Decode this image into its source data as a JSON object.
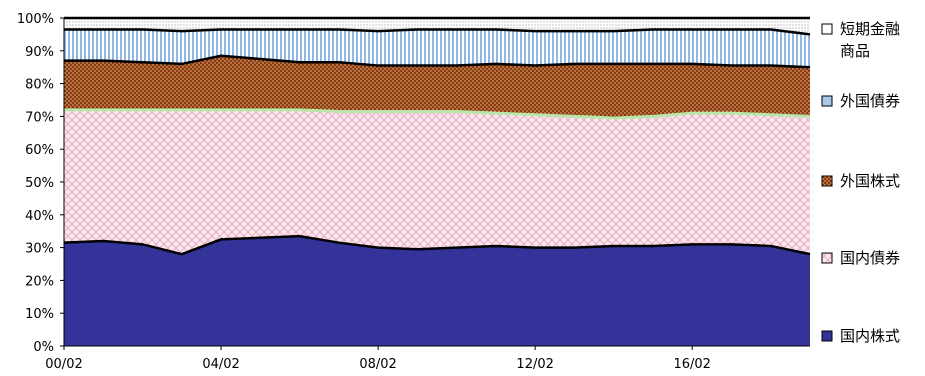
{
  "chart_data": {
    "type": "area",
    "stacked": true,
    "normalized_percent": true,
    "x_ticks": [
      "00/02",
      "04/02",
      "08/02",
      "12/02",
      "16/02"
    ],
    "y_ticks": [
      "0%",
      "10%",
      "20%",
      "30%",
      "40%",
      "50%",
      "60%",
      "70%",
      "80%",
      "90%",
      "100%"
    ],
    "ylim": [
      0,
      100
    ],
    "legend_position": "right",
    "x": [
      "00/02",
      "01/02",
      "02/02",
      "03/02",
      "04/02",
      "05/02",
      "06/02",
      "07/02",
      "08/02",
      "09/02",
      "10/02",
      "11/02",
      "12/02",
      "13/02",
      "14/02",
      "15/02",
      "16/02",
      "17/02",
      "18/02",
      "18/12"
    ],
    "series": [
      {
        "name": "国内株式",
        "color": "#33339a",
        "values": [
          31.5,
          32,
          31,
          28,
          32.5,
          33,
          33.5,
          31.5,
          30,
          29.5,
          30,
          30.5,
          30,
          30,
          30.5,
          30.5,
          31,
          31,
          30.5,
          28
        ]
      },
      {
        "name": "国内債券",
        "color": "#f2c4d6",
        "values": [
          40.5,
          40,
          41,
          44,
          39.5,
          39,
          38.5,
          40,
          41.5,
          42,
          41.5,
          40.5,
          40.5,
          40,
          39,
          39.5,
          40,
          40,
          40,
          42
        ]
      },
      {
        "name": "外国株式",
        "color": "#8b3a0e",
        "values": [
          15,
          15,
          14.5,
          14,
          16.5,
          15.5,
          14.5,
          15,
          14,
          14,
          14,
          15,
          15,
          16,
          16.5,
          16,
          15,
          14.5,
          15,
          15
        ]
      },
      {
        "name": "外国債券",
        "color": "#a8c8ec",
        "values": [
          9.5,
          9.5,
          10,
          10,
          8,
          9,
          10,
          10,
          10.5,
          11,
          11,
          10.5,
          10.5,
          10,
          10,
          10.5,
          10.5,
          11,
          11,
          10
        ]
      },
      {
        "name": "短期金融商品",
        "color": "#ffffff",
        "values": [
          3.5,
          3.5,
          3.5,
          4,
          3.5,
          3.5,
          3.5,
          3.5,
          4,
          3.5,
          3.5,
          3.5,
          4,
          4,
          4,
          3.5,
          3.5,
          3.5,
          3.5,
          5
        ]
      }
    ]
  },
  "legend": {
    "items": [
      {
        "lines": [
          "短期金融",
          "商品"
        ],
        "color": "#ffffff"
      },
      {
        "lines": [
          "外国債券"
        ],
        "color": "#a8c8ec"
      },
      {
        "lines": [
          "外国株式"
        ],
        "color": "#8b3a0e"
      },
      {
        "lines": [
          "国内債券"
        ],
        "color": "#f2c4d6"
      },
      {
        "lines": [
          "国内株式"
        ],
        "color": "#33339a"
      }
    ]
  }
}
